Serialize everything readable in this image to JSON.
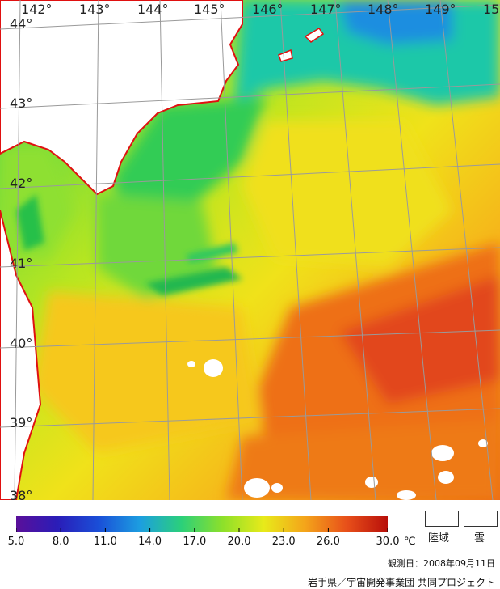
{
  "map": {
    "longitude_labels": [
      "142°",
      "143°",
      "144°",
      "145°",
      "146°",
      "147°",
      "148°",
      "149°",
      "15"
    ],
    "latitude_labels": [
      "44°",
      "43°",
      "42°",
      "41°",
      "40°",
      "39°",
      "38°"
    ]
  },
  "colorbar": {
    "ticks": [
      "5.0",
      "8.0",
      "11.0",
      "14.0",
      "17.0",
      "20.0",
      "23.0",
      "26.0",
      "30.0"
    ],
    "unit": "℃",
    "colors": [
      "#5a0f9a",
      "#2a1db8",
      "#1a4fd8",
      "#1c9ee0",
      "#2bd07a",
      "#8de02a",
      "#e8ea1a",
      "#f4a41a",
      "#e8501a",
      "#b80f0a"
    ]
  },
  "legend": {
    "land_label": "陸域",
    "cloud_label": "雲"
  },
  "footer": {
    "observation_date": "観測日：2008年09月11日",
    "credit": "岩手県／宇宙開発事業団 共同プロジェクト"
  }
}
